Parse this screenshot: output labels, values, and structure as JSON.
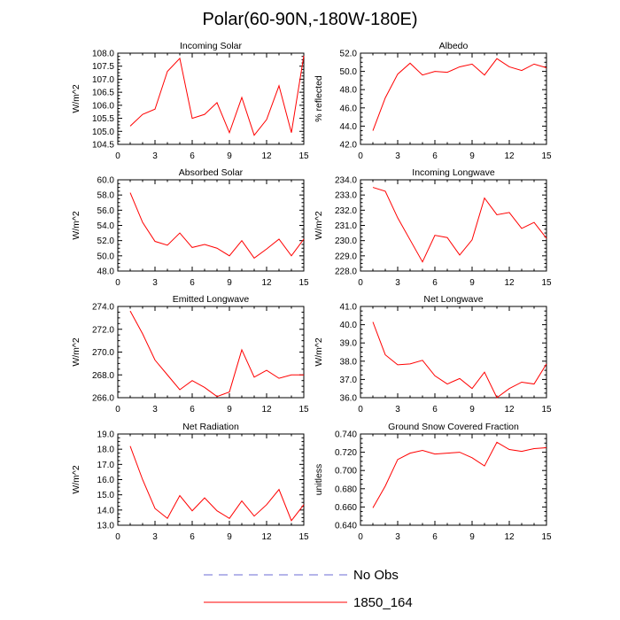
{
  "title": "Polar(60-90N,-180W-180E)",
  "series_color": "#ff0000",
  "obs_color": "#6b6bd6",
  "legend": [
    {
      "label": "No Obs",
      "style": "dashed",
      "color": "#6b6bd6"
    },
    {
      "label": "1850_164",
      "style": "solid",
      "color": "#ff0000"
    }
  ],
  "chart_data": [
    {
      "type": "line",
      "title": "Incoming Solar",
      "ylabel": "W/m^2",
      "xlim": [
        0,
        15
      ],
      "xticks": [
        0,
        3,
        6,
        9,
        12,
        15
      ],
      "xtick_labels": [
        "0",
        "3",
        "6",
        "9",
        "12",
        "15"
      ],
      "ylim": [
        104.5,
        108.0
      ],
      "yticks": [
        104.5,
        105.0,
        105.5,
        106.0,
        106.5,
        107.0,
        107.5,
        108.0
      ],
      "ytick_labels": [
        "104.5",
        "105.0",
        "105.5",
        "106.0",
        "106.5",
        "107.0",
        "107.5",
        "108.0"
      ],
      "series": [
        {
          "name": "1850_164",
          "x": [
            1,
            2,
            3,
            4,
            5,
            6,
            7,
            8,
            9,
            10,
            11,
            12,
            13,
            14,
            15
          ],
          "values": [
            105.2,
            105.65,
            105.85,
            107.3,
            107.8,
            105.5,
            105.65,
            106.1,
            104.95,
            106.3,
            104.85,
            105.45,
            106.75,
            104.95,
            107.9
          ]
        }
      ]
    },
    {
      "type": "line",
      "title": "Albedo",
      "ylabel": "% reflected",
      "xlim": [
        0,
        15
      ],
      "xticks": [
        0,
        3,
        6,
        9,
        12,
        15
      ],
      "xtick_labels": [
        "0",
        "3",
        "6",
        "9",
        "12",
        "15"
      ],
      "ylim": [
        42.0,
        52.0
      ],
      "yticks": [
        42.0,
        44.0,
        46.0,
        48.0,
        50.0,
        52.0
      ],
      "ytick_labels": [
        "42.0",
        "44.0",
        "46.0",
        "48.0",
        "50.0",
        "52.0"
      ],
      "series": [
        {
          "name": "1850_164",
          "x": [
            1,
            2,
            3,
            4,
            5,
            6,
            7,
            8,
            9,
            10,
            11,
            12,
            13,
            14,
            15
          ],
          "values": [
            43.5,
            47.1,
            49.7,
            50.9,
            49.6,
            50.0,
            49.9,
            50.5,
            50.8,
            49.6,
            51.4,
            50.5,
            50.1,
            50.8,
            50.4
          ]
        }
      ]
    },
    {
      "type": "line",
      "title": "Absorbed Solar",
      "ylabel": "W/m^2",
      "xlim": [
        0,
        15
      ],
      "xticks": [
        0,
        3,
        6,
        9,
        12,
        15
      ],
      "xtick_labels": [
        "0",
        "3",
        "6",
        "9",
        "12",
        "15"
      ],
      "ylim": [
        48.0,
        60.0
      ],
      "yticks": [
        48.0,
        50.0,
        52.0,
        54.0,
        56.0,
        58.0,
        60.0
      ],
      "ytick_labels": [
        "48.0",
        "50.0",
        "52.0",
        "54.0",
        "56.0",
        "58.0",
        "60.0"
      ],
      "series": [
        {
          "name": "1850_164",
          "x": [
            1,
            2,
            3,
            4,
            5,
            6,
            7,
            8,
            9,
            10,
            11,
            12,
            13,
            14,
            15
          ],
          "values": [
            58.3,
            54.4,
            51.9,
            51.4,
            53.0,
            51.1,
            51.5,
            51.0,
            50.0,
            52.0,
            49.7,
            50.9,
            52.2,
            50.0,
            52.2
          ]
        }
      ]
    },
    {
      "type": "line",
      "title": "Incoming Longwave",
      "ylabel": "W/m^2",
      "xlim": [
        0,
        15
      ],
      "xticks": [
        0,
        3,
        6,
        9,
        12,
        15
      ],
      "xtick_labels": [
        "0",
        "3",
        "6",
        "9",
        "12",
        "15"
      ],
      "ylim": [
        228.0,
        234.0
      ],
      "yticks": [
        228.0,
        229.0,
        230.0,
        231.0,
        232.0,
        233.0,
        234.0
      ],
      "ytick_labels": [
        "228.0",
        "229.0",
        "230.0",
        "231.0",
        "232.0",
        "233.0",
        "234.0"
      ],
      "series": [
        {
          "name": "1850_164",
          "x": [
            1,
            2,
            3,
            4,
            5,
            6,
            7,
            8,
            9,
            10,
            11,
            12,
            13,
            14,
            15
          ],
          "values": [
            233.5,
            233.25,
            231.5,
            230.05,
            228.6,
            230.35,
            230.2,
            229.05,
            230.05,
            232.8,
            231.7,
            231.85,
            230.8,
            231.2,
            230.15
          ]
        }
      ]
    },
    {
      "type": "line",
      "title": "Emitted Longwave",
      "ylabel": "W/m^2",
      "xlim": [
        0,
        15
      ],
      "xticks": [
        0,
        3,
        6,
        9,
        12,
        15
      ],
      "xtick_labels": [
        "0",
        "3",
        "6",
        "9",
        "12",
        "15"
      ],
      "ylim": [
        266.0,
        274.0
      ],
      "yticks": [
        266.0,
        268.0,
        270.0,
        272.0,
        274.0
      ],
      "ytick_labels": [
        "266.0",
        "268.0",
        "270.0",
        "272.0",
        "274.0"
      ],
      "series": [
        {
          "name": "1850_164",
          "x": [
            1,
            2,
            3,
            4,
            5,
            6,
            7,
            8,
            9,
            10,
            11,
            12,
            13,
            14,
            15
          ],
          "values": [
            273.6,
            271.6,
            269.3,
            268.0,
            266.7,
            267.5,
            266.9,
            266.1,
            266.5,
            270.2,
            267.8,
            268.4,
            267.7,
            268.0,
            268.0
          ]
        }
      ]
    },
    {
      "type": "line",
      "title": "Net Longwave",
      "ylabel": "W/m^2",
      "xlim": [
        0,
        15
      ],
      "xticks": [
        0,
        3,
        6,
        9,
        12,
        15
      ],
      "xtick_labels": [
        "0",
        "3",
        "6",
        "9",
        "12",
        "15"
      ],
      "ylim": [
        36.0,
        41.0
      ],
      "yticks": [
        36.0,
        37.0,
        38.0,
        39.0,
        40.0,
        41.0
      ],
      "ytick_labels": [
        "36.0",
        "37.0",
        "38.0",
        "39.0",
        "40.0",
        "41.0"
      ],
      "series": [
        {
          "name": "1850_164",
          "x": [
            1,
            2,
            3,
            4,
            5,
            6,
            7,
            8,
            9,
            10,
            11,
            12,
            13,
            14,
            15
          ],
          "values": [
            40.15,
            38.35,
            37.8,
            37.85,
            38.05,
            37.2,
            36.75,
            37.05,
            36.5,
            37.4,
            36.0,
            36.5,
            36.85,
            36.75,
            37.85
          ]
        }
      ]
    },
    {
      "type": "line",
      "title": "Net Radiation",
      "ylabel": "W/m^2",
      "xlim": [
        0,
        15
      ],
      "xticks": [
        0,
        3,
        6,
        9,
        12,
        15
      ],
      "xtick_labels": [
        "0",
        "3",
        "6",
        "9",
        "12",
        "15"
      ],
      "ylim": [
        13.0,
        19.0
      ],
      "yticks": [
        13.0,
        14.0,
        15.0,
        16.0,
        17.0,
        18.0,
        19.0
      ],
      "ytick_labels": [
        "13.0",
        "14.0",
        "15.0",
        "16.0",
        "17.0",
        "18.0",
        "19.0"
      ],
      "series": [
        {
          "name": "1850_164",
          "x": [
            1,
            2,
            3,
            4,
            5,
            6,
            7,
            8,
            9,
            10,
            11,
            12,
            13,
            14,
            15
          ],
          "values": [
            18.2,
            16.0,
            14.1,
            13.45,
            14.95,
            13.95,
            14.8,
            13.95,
            13.45,
            14.6,
            13.6,
            14.35,
            15.35,
            13.3,
            14.35
          ]
        }
      ]
    },
    {
      "type": "line",
      "title": "Ground Snow Covered Fraction",
      "ylabel": "unitless",
      "xlim": [
        0,
        15
      ],
      "xticks": [
        0,
        3,
        6,
        9,
        12,
        15
      ],
      "xtick_labels": [
        "0",
        "3",
        "6",
        "9",
        "12",
        "15"
      ],
      "ylim": [
        0.64,
        0.74
      ],
      "yticks": [
        0.64,
        0.66,
        0.68,
        0.7,
        0.72,
        0.74
      ],
      "ytick_labels": [
        "0.640",
        "0.660",
        "0.680",
        "0.700",
        "0.720",
        "0.740"
      ],
      "series": [
        {
          "name": "1850_164",
          "x": [
            1,
            2,
            3,
            4,
            5,
            6,
            7,
            8,
            9,
            10,
            11,
            12,
            13,
            14,
            15
          ],
          "values": [
            0.659,
            0.683,
            0.712,
            0.719,
            0.722,
            0.718,
            0.719,
            0.72,
            0.714,
            0.705,
            0.731,
            0.723,
            0.721,
            0.724,
            0.725
          ]
        }
      ]
    }
  ]
}
